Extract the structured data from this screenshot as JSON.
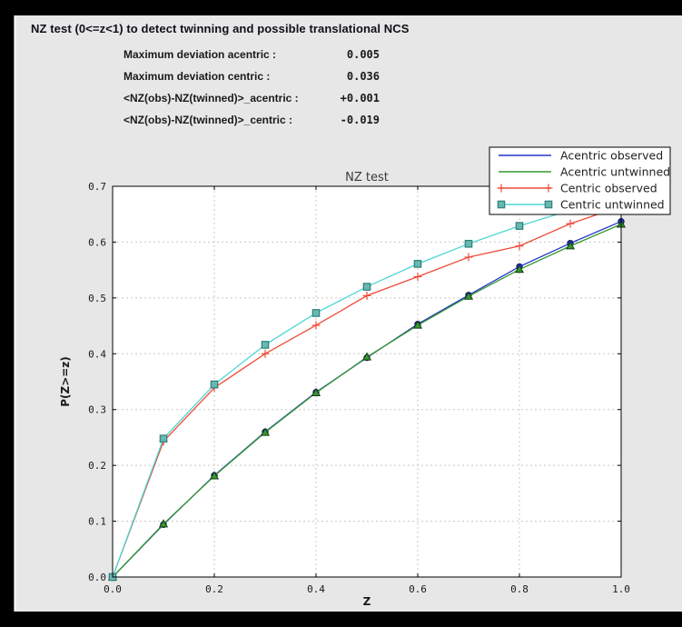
{
  "header": {
    "title": "NZ test (0<=z<1) to detect twinning and possible translational NCS"
  },
  "stats": [
    {
      "label": "Maximum deviation acentric :",
      "value": "0.005"
    },
    {
      "label": "Maximum deviation centric :",
      "value": "0.036"
    },
    {
      "label": "<NZ(obs)-NZ(twinned)>_acentric :",
      "value": "+0.001"
    },
    {
      "label": "<NZ(obs)-NZ(twinned)>_centric :",
      "value": "-0.019"
    }
  ],
  "colors": {
    "window_border": "#000000",
    "panel_bg": "#e7e7e7",
    "plot_bg": "#ffffff",
    "grid": "#c8c8c8",
    "spine": "#000000",
    "acentric_observed": "#2233cc",
    "acentric_untwinned": "#36982e",
    "centric_observed": "#ee4b38",
    "centric_untwinned": "#4cd7d4"
  },
  "chart_data": {
    "type": "line",
    "title": "NZ test",
    "xlabel": "Z",
    "ylabel": "P(Z>=z)",
    "xlim": [
      0.0,
      1.0
    ],
    "ylim": [
      0.0,
      0.7
    ],
    "xticks": [
      0.0,
      0.2,
      0.4,
      0.6,
      0.8,
      1.0
    ],
    "yticks": [
      0.0,
      0.1,
      0.2,
      0.3,
      0.4,
      0.5,
      0.6,
      0.7
    ],
    "grid": true,
    "legend_position": "upper-right-overlapping-plot-corner",
    "x": [
      0.0,
      0.1,
      0.2,
      0.3,
      0.4,
      0.5,
      0.6,
      0.7,
      0.8,
      0.9,
      1.0
    ],
    "series": [
      {
        "name": "Acentric observed",
        "color": "#2233cc",
        "marker": "circle",
        "marker_fill": "#2233cc",
        "marker_edge": "#141466",
        "values": [
          0.0,
          0.094,
          0.182,
          0.26,
          0.331,
          0.393,
          0.453,
          0.505,
          0.556,
          0.598,
          0.637
        ]
      },
      {
        "name": "Acentric untwinned",
        "color": "#36982e",
        "marker": "triangle",
        "marker_fill": "#36982e",
        "marker_edge": "#123f12",
        "values": [
          0.0,
          0.095,
          0.181,
          0.259,
          0.33,
          0.394,
          0.451,
          0.503,
          0.551,
          0.593,
          0.632
        ]
      },
      {
        "name": "Centric observed",
        "color": "#ee4b38",
        "marker": "plus",
        "marker_fill": "#ee4b38",
        "marker_edge": "#ee4b38",
        "values": [
          0.0,
          0.243,
          0.339,
          0.4,
          0.451,
          0.504,
          0.538,
          0.573,
          0.593,
          0.633,
          0.664
        ]
      },
      {
        "name": "Centric untwinned",
        "color": "#4cd7d4",
        "marker": "square",
        "marker_fill": "#68b8b2",
        "marker_edge": "#2e7f7b",
        "values": [
          0.0,
          0.248,
          0.345,
          0.416,
          0.473,
          0.52,
          0.561,
          0.597,
          0.629,
          0.657,
          0.683
        ]
      }
    ]
  }
}
